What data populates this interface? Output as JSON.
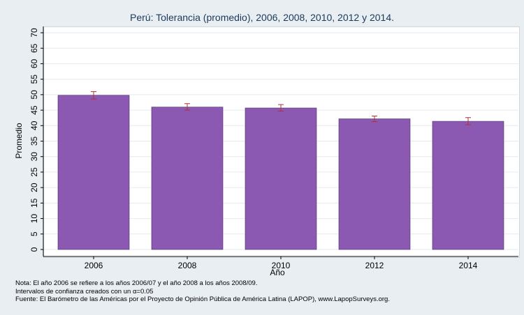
{
  "chart_data": {
    "type": "bar",
    "title": "Perú: Tolerancia (promedio), 2006, 2008, 2010, 2012 y 2014.",
    "xlabel": "Año",
    "ylabel": "Promedio",
    "categories": [
      "2006",
      "2008",
      "2010",
      "2012",
      "2014"
    ],
    "values": [
      49.8,
      46.0,
      45.7,
      42.2,
      41.4
    ],
    "error_low": [
      48.6,
      45.0,
      44.7,
      41.3,
      40.3
    ],
    "error_high": [
      51.0,
      47.1,
      46.8,
      43.1,
      42.6
    ],
    "ylim": [
      0,
      70
    ],
    "yticks": [
      "0",
      "5",
      "10",
      "15",
      "20",
      "25",
      "30",
      "35",
      "40",
      "45",
      "50",
      "55",
      "60",
      "65",
      "70"
    ],
    "grid": true,
    "bar_color": "#8b58b2",
    "error_color": "#b0303a"
  },
  "notes": {
    "line1": "Nota: El año 2006 se refiere a los años 2006/07 y el año 2008 a los años 2008/09.",
    "line2": "Intervalos de confianza creados con un α=0.05",
    "line3": "Fuente: El Barómetro de las Américas por el Proyecto de Opinión Pública de América Latina (LAPOP), www.LapopSurveys.org."
  }
}
